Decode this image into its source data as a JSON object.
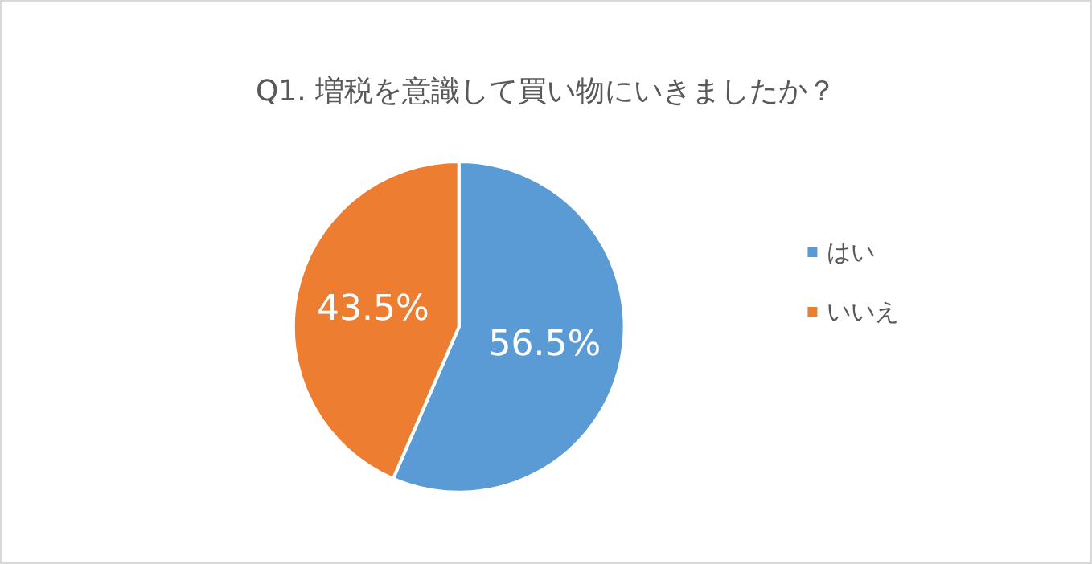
{
  "chart_data": {
    "type": "pie",
    "title": "Q1. 増税を意識して買い物にいきましたか？",
    "categories": [
      "はい",
      "いいえ"
    ],
    "values": [
      56.5,
      43.5
    ],
    "colors": [
      "#5b9bd5",
      "#ed7d31"
    ],
    "value_labels": [
      "56.5%",
      "43.5%"
    ],
    "legend": "right"
  }
}
